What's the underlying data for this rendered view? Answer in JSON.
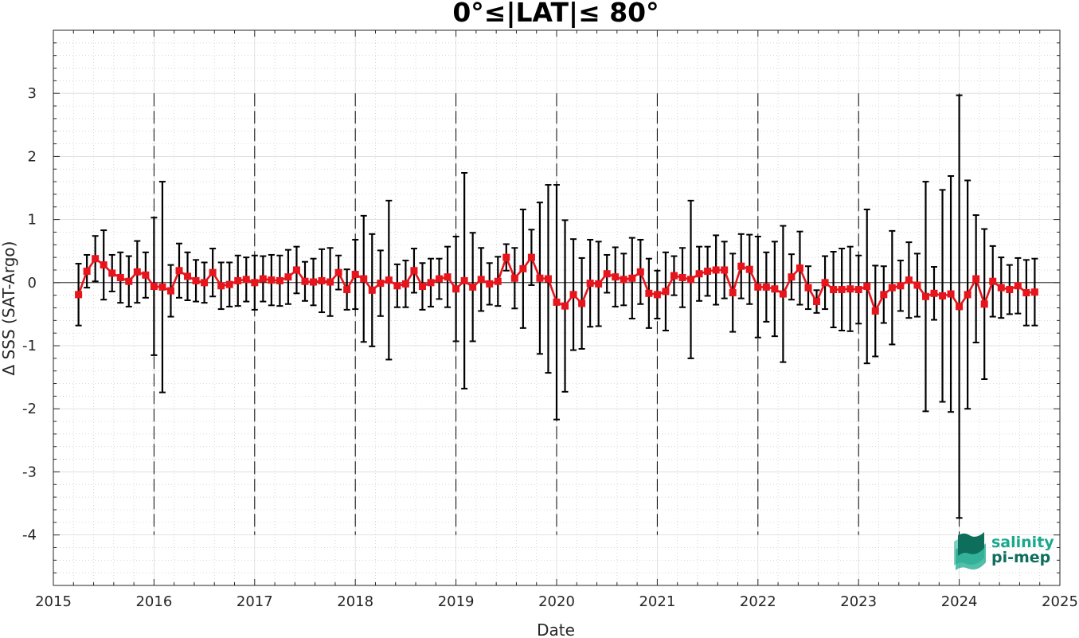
{
  "chart_data": {
    "type": "line",
    "title": "0°≤|LAT|≤ 80°",
    "xlabel": "Date",
    "ylabel": "Δ SSS (SAT-Argo)",
    "xlim": [
      2015,
      2025
    ],
    "ylim": [
      -4.8,
      4.0
    ],
    "x_ticks": [
      2015,
      2016,
      2017,
      2018,
      2019,
      2020,
      2021,
      2022,
      2023,
      2024,
      2025
    ],
    "y_ticks": [
      -4,
      -3,
      -2,
      -1,
      0,
      1,
      2,
      3
    ],
    "grid": true,
    "year_separators": [
      2016,
      2017,
      2018,
      2019,
      2020,
      2021,
      2022,
      2023,
      2024
    ],
    "series": [
      {
        "color": "#e8141c",
        "error_bar_color": "#000000",
        "x": [
          "2015-04",
          "2015-05",
          "2015-06",
          "2015-07",
          "2015-08",
          "2015-09",
          "2015-10",
          "2015-11",
          "2015-12",
          "2016-01",
          "2016-02",
          "2016-03",
          "2016-04",
          "2016-05",
          "2016-06",
          "2016-07",
          "2016-08",
          "2016-09",
          "2016-10",
          "2016-11",
          "2016-12",
          "2017-01",
          "2017-02",
          "2017-03",
          "2017-04",
          "2017-05",
          "2017-06",
          "2017-07",
          "2017-08",
          "2017-09",
          "2017-10",
          "2017-11",
          "2017-12",
          "2018-01",
          "2018-02",
          "2018-03",
          "2018-04",
          "2018-05",
          "2018-06",
          "2018-07",
          "2018-08",
          "2018-09",
          "2018-10",
          "2018-11",
          "2018-12",
          "2019-01",
          "2019-02",
          "2019-03",
          "2019-04",
          "2019-05",
          "2019-06",
          "2019-07",
          "2019-08",
          "2019-09",
          "2019-10",
          "2019-11",
          "2019-12",
          "2020-01",
          "2020-02",
          "2020-03",
          "2020-04",
          "2020-05",
          "2020-06",
          "2020-07",
          "2020-08",
          "2020-09",
          "2020-10",
          "2020-11",
          "2020-12",
          "2021-01",
          "2021-02",
          "2021-03",
          "2021-04",
          "2021-05",
          "2021-06",
          "2021-07",
          "2021-08",
          "2021-09",
          "2021-10",
          "2021-11",
          "2021-12",
          "2022-01",
          "2022-02",
          "2022-03",
          "2022-04",
          "2022-05",
          "2022-06",
          "2022-07",
          "2022-08",
          "2022-09",
          "2022-10",
          "2022-11",
          "2022-12",
          "2023-01",
          "2023-02",
          "2023-03",
          "2023-04",
          "2023-05",
          "2023-06",
          "2023-07",
          "2023-08",
          "2023-09",
          "2023-10",
          "2023-11",
          "2023-12",
          "2024-01",
          "2024-02",
          "2024-03",
          "2024-04",
          "2024-05",
          "2024-06",
          "2024-07",
          "2024-08",
          "2024-09",
          "2024-10"
        ],
        "y": [
          -0.19,
          0.18,
          0.38,
          0.28,
          0.15,
          0.08,
          0.02,
          0.17,
          0.12,
          -0.06,
          -0.07,
          -0.13,
          0.19,
          0.1,
          0.03,
          0.0,
          0.16,
          -0.05,
          -0.03,
          0.03,
          0.05,
          0.0,
          0.06,
          0.04,
          0.03,
          0.09,
          0.2,
          0.02,
          0.01,
          0.03,
          0.01,
          0.16,
          -0.11,
          0.13,
          0.06,
          -0.12,
          -0.01,
          0.04,
          -0.05,
          -0.02,
          0.19,
          -0.06,
          0.0,
          0.06,
          0.09,
          -0.1,
          0.03,
          -0.07,
          0.05,
          -0.02,
          0.02,
          0.4,
          0.07,
          0.22,
          0.4,
          0.07,
          0.06,
          -0.31,
          -0.37,
          -0.19,
          -0.33,
          -0.01,
          -0.02,
          0.14,
          0.09,
          0.05,
          0.07,
          0.17,
          -0.17,
          -0.19,
          -0.14,
          0.11,
          0.08,
          0.05,
          0.14,
          0.18,
          0.2,
          0.2,
          -0.16,
          0.26,
          0.21,
          -0.07,
          -0.07,
          -0.1,
          -0.18,
          0.09,
          0.23,
          -0.08,
          -0.3,
          0.0,
          -0.11,
          -0.11,
          -0.1,
          -0.11,
          -0.06,
          -0.45,
          -0.19,
          -0.08,
          -0.05,
          0.04,
          -0.04,
          -0.22,
          -0.17,
          -0.21,
          -0.18,
          -0.38,
          -0.19,
          0.06,
          -0.34,
          0.02,
          -0.08,
          -0.11,
          -0.05,
          -0.16,
          -0.15
        ],
        "err": [
          0.49,
          0.26,
          0.36,
          0.55,
          0.29,
          0.4,
          0.4,
          0.49,
          0.36,
          1.09,
          1.67,
          0.41,
          0.43,
          0.38,
          0.33,
          0.32,
          0.38,
          0.37,
          0.35,
          0.4,
          0.35,
          0.43,
          0.36,
          0.4,
          0.4,
          0.43,
          0.37,
          0.31,
          0.37,
          0.5,
          0.54,
          0.27,
          0.32,
          0.55,
          1.0,
          0.89,
          0.52,
          1.26,
          0.34,
          0.37,
          0.35,
          0.37,
          0.38,
          0.32,
          0.48,
          0.83,
          1.71,
          0.86,
          0.5,
          0.33,
          0.39,
          0.21,
          0.48,
          0.94,
          0.44,
          1.2,
          1.49,
          1.86,
          1.36,
          0.88,
          0.72,
          0.69,
          0.67,
          0.3,
          0.47,
          0.41,
          0.64,
          0.51,
          0.55,
          0.38,
          0.62,
          0.31,
          0.47,
          1.25,
          0.43,
          0.39,
          0.55,
          0.45,
          0.62,
          0.51,
          0.55,
          0.8,
          0.55,
          0.75,
          1.08,
          0.36,
          0.58,
          0.34,
          0.18,
          0.42,
          0.6,
          0.65,
          0.67,
          0.54,
          1.22,
          0.72,
          0.45,
          0.9,
          0.4,
          0.6,
          0.5,
          1.82,
          0.42,
          1.68,
          1.87,
          3.35,
          1.81,
          1.01,
          1.19,
          0.56,
          0.48,
          0.39,
          0.44,
          0.52,
          0.53
        ]
      }
    ]
  },
  "logo": {
    "line1": "salinity",
    "line2": "pi-mep",
    "color": "#1aa88c"
  }
}
